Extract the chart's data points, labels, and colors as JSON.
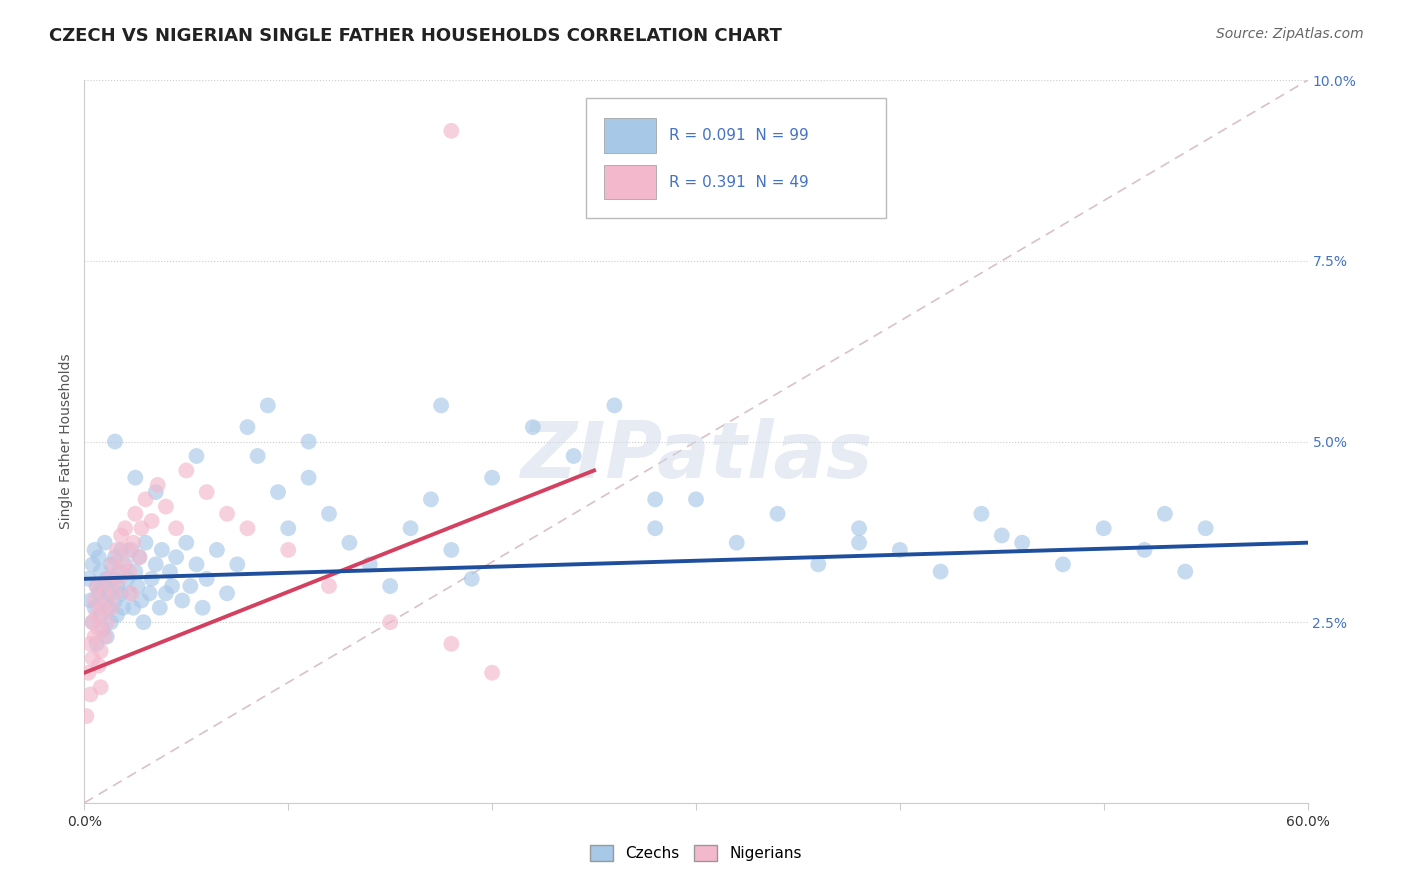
{
  "title": "CZECH VS NIGERIAN SINGLE FATHER HOUSEHOLDS CORRELATION CHART",
  "source": "Source: ZipAtlas.com",
  "ylabel": "Single Father Households",
  "czech_color": "#a8c8e8",
  "nigerian_color": "#f4b8cc",
  "czech_line_color": "#1f4e9c",
  "nigerian_line_color": "#d44060",
  "diagonal_color": "#c8a8b0",
  "watermark": "ZIPatlas",
  "background_color": "#ffffff",
  "grid_color": "#cccccc",
  "title_fontsize": 13,
  "axis_label_fontsize": 10,
  "tick_fontsize": 10,
  "source_fontsize": 10,
  "legend_r1": "R = 0.091  N = 99",
  "legend_r2": "R = 0.391  N = 49",
  "legend_label1": "Czechs",
  "legend_label2": "Nigerians"
}
